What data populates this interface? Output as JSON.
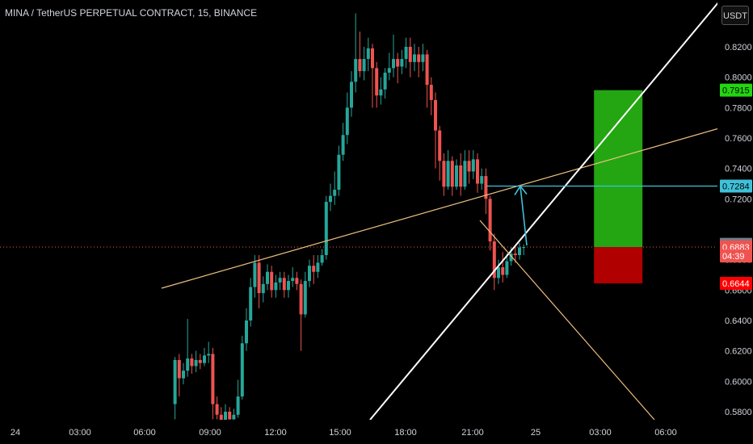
{
  "header": {
    "title": "MINA / TetherUS PERPETUAL CONTRACT, 15, BINANCE"
  },
  "currency_button": "USDT",
  "colors": {
    "up": "#26a69a",
    "down": "#ef5350",
    "trendline": "#f0c080",
    "support_line": "#ffffff",
    "target_line": "#3fc1d9",
    "profit_zone": "#23a612",
    "loss_zone": "#b00000"
  },
  "chart_data": {
    "type": "candlestick",
    "symbol": "MINA/USDT",
    "timeframe": "15",
    "x_ticks": [
      "24",
      "03:00",
      "06:00",
      "09:00",
      "12:00",
      "15:00",
      "18:00",
      "21:00",
      "25",
      "03:00",
      "06:00"
    ],
    "y_ticks": [
      "0.8200",
      "0.8000",
      "0.7800",
      "0.7600",
      "0.7400",
      "0.7200",
      "0.6800",
      "0.6600",
      "0.6400",
      "0.6200",
      "0.6000",
      "0.5800"
    ],
    "ylim": [
      0.575,
      0.845
    ],
    "price_labels": [
      {
        "name": "take-profit",
        "text": "0.7915",
        "value": 0.7915,
        "color": "#23d610",
        "text_color": "#000000"
      },
      {
        "name": "target",
        "text": "0.7284",
        "value": 0.7284,
        "color": "#3fc1d9",
        "text_color": "#000000"
      },
      {
        "name": "last-high",
        "text": "0.6901",
        "value": 0.6901,
        "color": "#787b86",
        "text_color": "#ffffff"
      },
      {
        "name": "current",
        "text": "0.6883",
        "value": 0.6883,
        "color": "#ef5350",
        "text_color": "#ffffff"
      },
      {
        "name": "countdown",
        "text": "04:39",
        "value": 0.6824,
        "color": "#ef5350",
        "text_color": "#ffffff"
      },
      {
        "name": "stop-loss",
        "text": "0.6644",
        "value": 0.6644,
        "color": "#ff0000",
        "text_color": "#ffffff"
      }
    ],
    "current_price": 0.6883,
    "candles": [
      [
        0.585,
        0.614,
        0.575,
        0.616
      ],
      [
        0.614,
        0.602,
        0.59,
        0.618
      ],
      [
        0.602,
        0.607,
        0.598,
        0.612
      ],
      [
        0.607,
        0.615,
        0.603,
        0.641
      ],
      [
        0.615,
        0.61,
        0.605,
        0.618
      ],
      [
        0.61,
        0.614,
        0.606,
        0.62
      ],
      [
        0.614,
        0.612,
        0.608,
        0.618
      ],
      [
        0.612,
        0.617,
        0.61,
        0.622
      ],
      [
        0.617,
        0.618,
        0.612,
        0.626
      ],
      [
        0.618,
        0.585,
        0.575,
        0.622
      ],
      [
        0.585,
        0.578,
        0.575,
        0.59
      ],
      [
        0.578,
        0.572,
        0.565,
        0.583
      ],
      [
        0.572,
        0.58,
        0.57,
        0.585
      ],
      [
        0.58,
        0.575,
        0.572,
        0.583
      ],
      [
        0.575,
        0.578,
        0.57,
        0.582
      ],
      [
        0.578,
        0.59,
        0.576,
        0.601
      ],
      [
        0.59,
        0.625,
        0.588,
        0.63
      ],
      [
        0.625,
        0.64,
        0.62,
        0.648
      ],
      [
        0.64,
        0.662,
        0.636,
        0.668
      ],
      [
        0.662,
        0.678,
        0.655,
        0.683
      ],
      [
        0.678,
        0.658,
        0.648,
        0.683
      ],
      [
        0.658,
        0.664,
        0.652,
        0.669
      ],
      [
        0.664,
        0.672,
        0.66,
        0.677
      ],
      [
        0.672,
        0.66,
        0.655,
        0.676
      ],
      [
        0.66,
        0.665,
        0.655,
        0.67
      ],
      [
        0.665,
        0.668,
        0.66,
        0.672
      ],
      [
        0.668,
        0.66,
        0.655,
        0.672
      ],
      [
        0.66,
        0.666,
        0.655,
        0.67
      ],
      [
        0.666,
        0.668,
        0.662,
        0.675
      ],
      [
        0.668,
        0.664,
        0.66,
        0.672
      ],
      [
        0.664,
        0.644,
        0.62,
        0.667
      ],
      [
        0.644,
        0.666,
        0.642,
        0.672
      ],
      [
        0.666,
        0.676,
        0.662,
        0.68
      ],
      [
        0.676,
        0.672,
        0.664,
        0.683
      ],
      [
        0.672,
        0.678,
        0.668,
        0.683
      ],
      [
        0.678,
        0.683,
        0.676,
        0.687
      ],
      [
        0.683,
        0.718,
        0.68,
        0.722
      ],
      [
        0.718,
        0.722,
        0.712,
        0.73
      ],
      [
        0.722,
        0.726,
        0.716,
        0.738
      ],
      [
        0.726,
        0.749,
        0.722,
        0.755
      ],
      [
        0.749,
        0.762,
        0.745,
        0.77
      ],
      [
        0.762,
        0.78,
        0.756,
        0.79
      ],
      [
        0.78,
        0.797,
        0.774,
        0.804
      ],
      [
        0.797,
        0.812,
        0.79,
        0.842
      ],
      [
        0.812,
        0.804,
        0.8,
        0.83
      ],
      [
        0.804,
        0.812,
        0.798,
        0.82
      ],
      [
        0.812,
        0.819,
        0.804,
        0.826
      ],
      [
        0.819,
        0.806,
        0.78,
        0.822
      ],
      [
        0.806,
        0.788,
        0.78,
        0.81
      ],
      [
        0.788,
        0.792,
        0.782,
        0.8
      ],
      [
        0.792,
        0.803,
        0.786,
        0.806
      ],
      [
        0.803,
        0.806,
        0.798,
        0.816
      ],
      [
        0.806,
        0.812,
        0.8,
        0.828
      ],
      [
        0.812,
        0.807,
        0.796,
        0.816
      ],
      [
        0.807,
        0.812,
        0.802,
        0.818
      ],
      [
        0.812,
        0.82,
        0.806,
        0.826
      ],
      [
        0.82,
        0.81,
        0.8,
        0.826
      ],
      [
        0.81,
        0.815,
        0.804,
        0.822
      ],
      [
        0.815,
        0.81,
        0.8,
        0.82
      ],
      [
        0.81,
        0.815,
        0.804,
        0.822
      ],
      [
        0.815,
        0.795,
        0.78,
        0.818
      ],
      [
        0.795,
        0.785,
        0.775,
        0.8
      ],
      [
        0.785,
        0.765,
        0.74,
        0.79
      ],
      [
        0.765,
        0.745,
        0.732,
        0.768
      ],
      [
        0.745,
        0.728,
        0.722,
        0.75
      ],
      [
        0.728,
        0.745,
        0.726,
        0.752
      ],
      [
        0.745,
        0.728,
        0.722,
        0.748
      ],
      [
        0.728,
        0.742,
        0.726,
        0.746
      ],
      [
        0.742,
        0.728,
        0.722,
        0.75
      ],
      [
        0.728,
        0.745,
        0.726,
        0.752
      ],
      [
        0.745,
        0.738,
        0.73,
        0.752
      ],
      [
        0.738,
        0.746,
        0.733,
        0.752
      ],
      [
        0.746,
        0.73,
        0.724,
        0.75
      ],
      [
        0.73,
        0.735,
        0.726,
        0.74
      ],
      [
        0.735,
        0.72,
        0.71,
        0.74
      ],
      [
        0.72,
        0.692,
        0.686,
        0.722
      ],
      [
        0.692,
        0.668,
        0.66,
        0.697
      ],
      [
        0.668,
        0.675,
        0.664,
        0.68
      ],
      [
        0.675,
        0.67,
        0.665,
        0.685
      ],
      [
        0.67,
        0.679,
        0.668,
        0.684
      ],
      [
        0.679,
        0.684,
        0.676,
        0.688
      ],
      [
        0.684,
        0.683,
        0.678,
        0.689
      ],
      [
        0.683,
        0.688,
        0.68,
        0.691
      ],
      [
        0.688,
        0.6883,
        0.683,
        0.6901
      ]
    ],
    "drawings": {
      "rising_trendline": {
        "from": {
          "bar": 0,
          "price": 0.662
        },
        "to": {
          "bar": 116,
          "price": 0.765
        }
      },
      "support_line": {
        "from": {
          "bar": 44,
          "price": 0.555
        },
        "to": {
          "bar": 118,
          "price": 0.851
        }
      },
      "breakdown_line": {
        "from": {
          "bar": 84,
          "price": 0.694
        },
        "to": {
          "bar": 113,
          "price": 0.555
        }
      },
      "projection_arrow": {
        "points": [
          {
            "bar": 90,
            "price": 0.6883
          },
          {
            "bar": 88,
            "price": 0.7284
          }
        ]
      },
      "target_line": {
        "from": {
          "bar": 81,
          "price": 0.7284
        },
        "to": {
          "bar": 123,
          "price": 0.7284
        }
      },
      "long_position": {
        "from_bar": 96,
        "to_bar": 106,
        "entry": 0.6883,
        "take_profit": 0.7915,
        "stop_loss": 0.6644
      }
    }
  }
}
